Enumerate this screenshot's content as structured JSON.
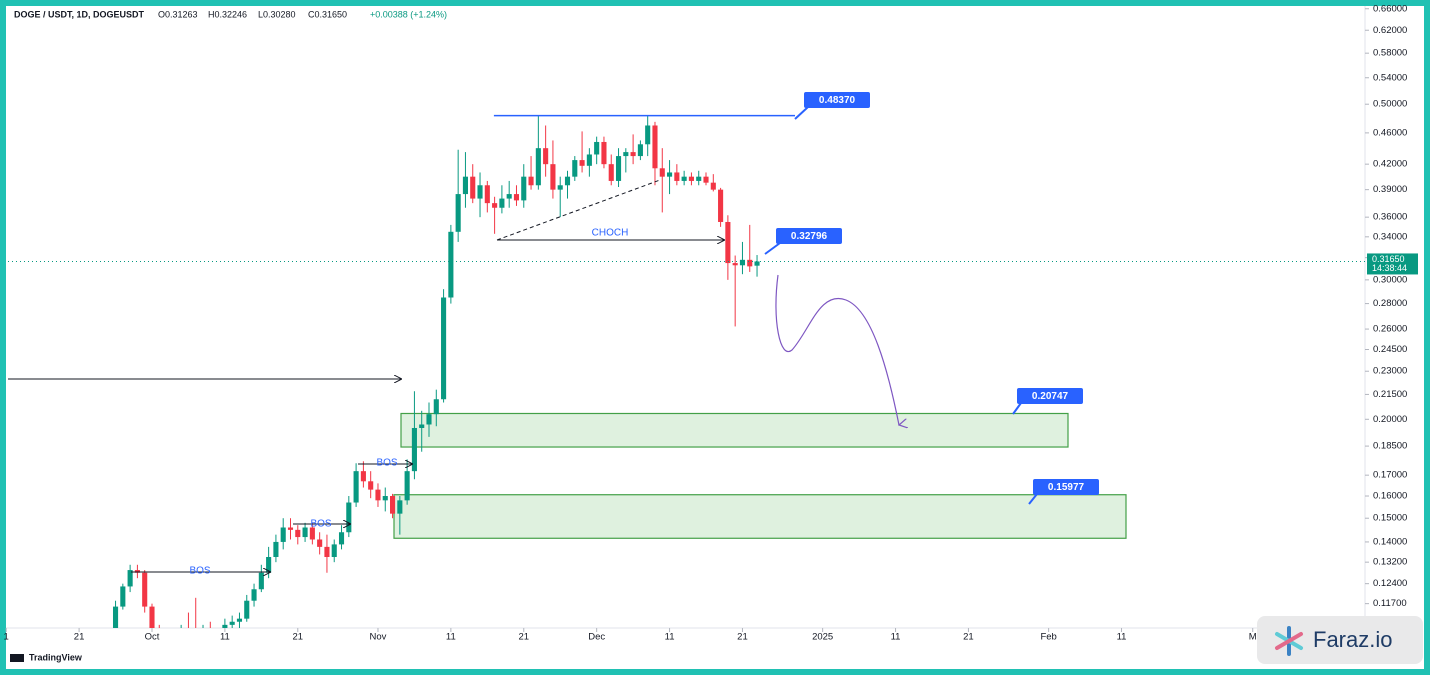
{
  "chart_data": {
    "type": "candlestick",
    "title": "DOGE / USDT, 1D, DOGEUSDT",
    "ohlc_legend": [
      "O0.31263",
      "H0.32246",
      "L0.30280",
      "C0.31650",
      "+0.00388 (+1.24%)"
    ],
    "x": [
      -5,
      -4,
      -3,
      -2,
      -1,
      0,
      1,
      2,
      3,
      4,
      5,
      6,
      7,
      8,
      9,
      10,
      11,
      12,
      13,
      14,
      15,
      16,
      17,
      18,
      19,
      20,
      21,
      22,
      23,
      24,
      25,
      26,
      27,
      28,
      29,
      30,
      31,
      32,
      33,
      34,
      35,
      36,
      37,
      38,
      39,
      40,
      41,
      42,
      43,
      44,
      45,
      46,
      47,
      48,
      49,
      50,
      51,
      52,
      53,
      54,
      55,
      56,
      57,
      58,
      59,
      60,
      61,
      62,
      63,
      64,
      65,
      66,
      67,
      68,
      69,
      70,
      71,
      72,
      73,
      74,
      75,
      76,
      77,
      78,
      79,
      80,
      81,
      82,
      83
    ],
    "open": [
      0.108,
      0.116,
      0.123,
      0.129,
      0.128,
      0.116,
      0.108,
      0.106,
      0.104,
      0.106,
      0.109,
      0.108,
      0.107,
      0.108,
      0.106,
      0.108,
      0.11,
      0.111,
      0.112,
      0.118,
      0.122,
      0.128,
      0.134,
      0.14,
      0.146,
      0.145,
      0.142,
      0.146,
      0.141,
      0.138,
      0.134,
      0.139,
      0.144,
      0.157,
      0.172,
      0.167,
      0.163,
      0.158,
      0.16,
      0.152,
      0.158,
      0.172,
      0.195,
      0.197,
      0.203,
      0.212,
      0.285,
      0.345,
      0.385,
      0.405,
      0.38,
      0.395,
      0.375,
      0.37,
      0.38,
      0.385,
      0.378,
      0.405,
      0.395,
      0.44,
      0.42,
      0.39,
      0.395,
      0.405,
      0.425,
      0.418,
      0.432,
      0.448,
      0.42,
      0.4,
      0.43,
      0.435,
      0.43,
      0.445,
      0.47,
      0.415,
      0.405,
      0.41,
      0.4,
      0.405,
      0.4,
      0.405,
      0.398,
      0.39,
      0.355,
      0.315,
      0.313,
      0.318,
      0.31263
    ],
    "high": [
      0.118,
      0.124,
      0.131,
      0.131,
      0.129,
      0.117,
      0.11,
      0.108,
      0.107,
      0.11,
      0.114,
      0.119,
      0.11,
      0.111,
      0.109,
      0.112,
      0.113,
      0.114,
      0.12,
      0.124,
      0.131,
      0.138,
      0.143,
      0.15,
      0.15,
      0.147,
      0.148,
      0.148,
      0.144,
      0.143,
      0.141,
      0.147,
      0.16,
      0.176,
      0.177,
      0.172,
      0.166,
      0.164,
      0.161,
      0.16,
      0.178,
      0.217,
      0.205,
      0.21,
      0.218,
      0.292,
      0.352,
      0.438,
      0.435,
      0.42,
      0.41,
      0.4,
      0.382,
      0.395,
      0.4,
      0.395,
      0.42,
      0.43,
      0.4837,
      0.47,
      0.45,
      0.405,
      0.412,
      0.43,
      0.462,
      0.44,
      0.455,
      0.455,
      0.432,
      0.44,
      0.44,
      0.458,
      0.45,
      0.484,
      0.475,
      0.44,
      0.425,
      0.42,
      0.412,
      0.41,
      0.412,
      0.41,
      0.408,
      0.392,
      0.362,
      0.322,
      0.335,
      0.352,
      0.32246
    ],
    "low": [
      0.107,
      0.115,
      0.121,
      0.126,
      0.114,
      0.106,
      0.104,
      0.102,
      0.101,
      0.105,
      0.107,
      0.106,
      0.104,
      0.105,
      0.104,
      0.107,
      0.108,
      0.109,
      0.111,
      0.116,
      0.121,
      0.126,
      0.132,
      0.137,
      0.141,
      0.139,
      0.14,
      0.139,
      0.135,
      0.128,
      0.132,
      0.137,
      0.142,
      0.155,
      0.164,
      0.159,
      0.155,
      0.153,
      0.15,
      0.143,
      0.156,
      0.168,
      0.182,
      0.19,
      0.196,
      0.21,
      0.28,
      0.335,
      0.37,
      0.375,
      0.36,
      0.365,
      0.343,
      0.364,
      0.37,
      0.372,
      0.37,
      0.39,
      0.39,
      0.405,
      0.38,
      0.36,
      0.38,
      0.4,
      0.41,
      0.405,
      0.42,
      0.415,
      0.395,
      0.393,
      0.41,
      0.42,
      0.425,
      0.43,
      0.395,
      0.365,
      0.385,
      0.395,
      0.395,
      0.395,
      0.395,
      0.395,
      0.388,
      0.35,
      0.3,
      0.262,
      0.305,
      0.307,
      0.3028
    ],
    "close": [
      0.116,
      0.123,
      0.129,
      0.128,
      0.116,
      0.108,
      0.106,
      0.104,
      0.106,
      0.109,
      0.108,
      0.107,
      0.108,
      0.106,
      0.108,
      0.11,
      0.111,
      0.112,
      0.118,
      0.122,
      0.128,
      0.134,
      0.14,
      0.146,
      0.145,
      0.142,
      0.146,
      0.141,
      0.138,
      0.134,
      0.139,
      0.144,
      0.157,
      0.172,
      0.167,
      0.163,
      0.158,
      0.16,
      0.152,
      0.158,
      0.172,
      0.195,
      0.197,
      0.203,
      0.212,
      0.285,
      0.345,
      0.385,
      0.405,
      0.38,
      0.395,
      0.375,
      0.37,
      0.38,
      0.385,
      0.378,
      0.405,
      0.395,
      0.44,
      0.42,
      0.39,
      0.395,
      0.405,
      0.425,
      0.418,
      0.432,
      0.448,
      0.42,
      0.4,
      0.43,
      0.435,
      0.43,
      0.445,
      0.47,
      0.415,
      0.405,
      0.41,
      0.4,
      0.405,
      0.4,
      0.405,
      0.398,
      0.39,
      0.355,
      0.315,
      0.313,
      0.318,
      0.312,
      0.3165
    ],
    "up_color": "#089981",
    "down_color": "#f23645",
    "xlim": [
      -20.85,
      166.4
    ],
    "xticks": [
      {
        "value": -20,
        "label": "1"
      },
      {
        "value": -10,
        "label": "21"
      },
      {
        "value": 0,
        "label": "Oct"
      },
      {
        "value": 10,
        "label": "11"
      },
      {
        "value": 20,
        "label": "21"
      },
      {
        "value": 31,
        "label": "Nov"
      },
      {
        "value": 41,
        "label": "11"
      },
      {
        "value": 51,
        "label": "21"
      },
      {
        "value": 61,
        "label": "Dec"
      },
      {
        "value": 71,
        "label": "11"
      },
      {
        "value": 81,
        "label": "21"
      },
      {
        "value": 92,
        "label": "2025"
      },
      {
        "value": 102,
        "label": "11"
      },
      {
        "value": 112,
        "label": "21"
      },
      {
        "value": 123,
        "label": "Feb"
      },
      {
        "value": 133,
        "label": "11"
      },
      {
        "value": 151,
        "label": "M"
      }
    ],
    "ylim": [
      0.109,
      0.677
    ],
    "log_scale": true,
    "yticks": [
      {
        "value": 0.66,
        "label": "0.66000"
      },
      {
        "value": 0.62,
        "label": "0.62000"
      },
      {
        "value": 0.58,
        "label": "0.58000"
      },
      {
        "value": 0.54,
        "label": "0.54000"
      },
      {
        "value": 0.5,
        "label": "0.50000"
      },
      {
        "value": 0.46,
        "label": "0.46000"
      },
      {
        "value": 0.42,
        "label": "0.42000"
      },
      {
        "value": 0.39,
        "label": "0.39000"
      },
      {
        "value": 0.36,
        "label": "0.36000"
      },
      {
        "value": 0.34,
        "label": "0.34000"
      },
      {
        "value": 0.32,
        "label": "0.32000"
      },
      {
        "value": 0.3,
        "label": "0.30000"
      },
      {
        "value": 0.28,
        "label": "0.28000"
      },
      {
        "value": 0.26,
        "label": "0.26000"
      },
      {
        "value": 0.245,
        "label": "0.24500"
      },
      {
        "value": 0.23,
        "label": "0.23000"
      },
      {
        "value": 0.215,
        "label": "0.21500"
      },
      {
        "value": 0.2,
        "label": "0.20000"
      },
      {
        "value": 0.185,
        "label": "0.18500"
      },
      {
        "value": 0.17,
        "label": "0.17000"
      },
      {
        "value": 0.16,
        "label": "0.16000"
      },
      {
        "value": 0.15,
        "label": "0.15000"
      },
      {
        "value": 0.14,
        "label": "0.14000"
      },
      {
        "value": 0.132,
        "label": "0.13200"
      },
      {
        "value": 0.124,
        "label": "0.12400"
      },
      {
        "value": 0.117,
        "label": "0.11700"
      }
    ],
    "last_price": {
      "value": 0.3165,
      "label": "0.31650"
    },
    "countdown": "14:38:44",
    "annotations": [
      {
        "value": 0.4837,
        "label": "0.48370"
      },
      {
        "value": 0.32796,
        "label": "0.32796"
      },
      {
        "value": 0.20747,
        "label": "0.20747"
      },
      {
        "value": 0.15977,
        "label": "0.15977"
      }
    ],
    "zones": [
      {
        "high": 0.2034,
        "low": 0.1845
      },
      {
        "high": 0.1606,
        "low": 0.1415
      }
    ],
    "structure_labels": [
      "BOS",
      "BOS",
      "BOS",
      "CHOCH"
    ]
  },
  "branding": {
    "platform": "TradingView",
    "watermark": "Faraz.io"
  }
}
